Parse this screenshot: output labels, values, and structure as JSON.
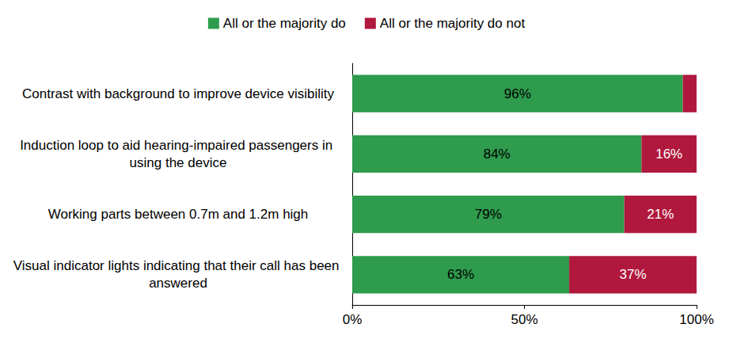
{
  "chart_data": {
    "type": "bar",
    "orientation": "horizontal",
    "stacked": true,
    "data_labels": true,
    "grid": false,
    "legend": "top",
    "categories": [
      "Contrast with background to improve device visibility",
      "Induction loop to aid hearing-impaired passengers in using the device",
      "Working parts between 0.7m and 1.2m high",
      "Visual indicator lights indicating that their call has been answered"
    ],
    "series": [
      {
        "name": "All or the majority do",
        "color": "#2e9b4d",
        "values": [
          96,
          84,
          79,
          63
        ],
        "value_labels": [
          "96%",
          "84%",
          "79%",
          "63%"
        ]
      },
      {
        "name": "All or the majority do not",
        "color": "#b0183d",
        "values": [
          4,
          16,
          21,
          37
        ],
        "value_labels": [
          null,
          "16%",
          "21%",
          "37%"
        ]
      }
    ],
    "xlim": [
      0,
      100
    ],
    "xticks": [
      {
        "value": 0,
        "label": "0%"
      },
      {
        "value": 50,
        "label": "50%"
      },
      {
        "value": 100,
        "label": "100%"
      }
    ]
  }
}
